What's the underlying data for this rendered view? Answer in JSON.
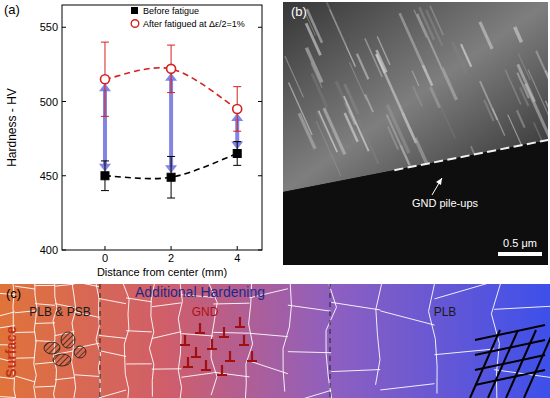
{
  "chart_data": {
    "type": "line",
    "panel_label": "(a)",
    "xlabel": "Distance from center (mm)",
    "ylabel": "Hardness - HV",
    "x": [
      0,
      2,
      4
    ],
    "xlim": [
      -1.3,
      4.75
    ],
    "xticks": [
      0,
      2,
      4
    ],
    "ylim": [
      400,
      565
    ],
    "yticks": [
      400,
      450,
      500,
      550
    ],
    "legend": "upper right",
    "series": [
      {
        "name": "Before fatigue",
        "color": "#000000",
        "marker": "square",
        "line_style": "dashed",
        "values": [
          450,
          449,
          465
        ],
        "errors": [
          10,
          14,
          8
        ]
      },
      {
        "name": "After fatigued at Δε/2=1%",
        "color": "#d62020",
        "marker": "circle",
        "line_style": "dashed",
        "values": [
          515,
          522,
          495
        ],
        "errors": [
          25,
          16,
          15
        ]
      }
    ]
  },
  "image_panel": {
    "panel_label": "(b)",
    "annotation": "GND pile-ups",
    "scale_bar": "0.5 μm"
  },
  "schematic": {
    "panel_label": "(c)",
    "side_label": "Surface",
    "title": "Additional Hardening",
    "zones": [
      "PLB & PSB",
      "GND",
      "PLB"
    ]
  }
}
